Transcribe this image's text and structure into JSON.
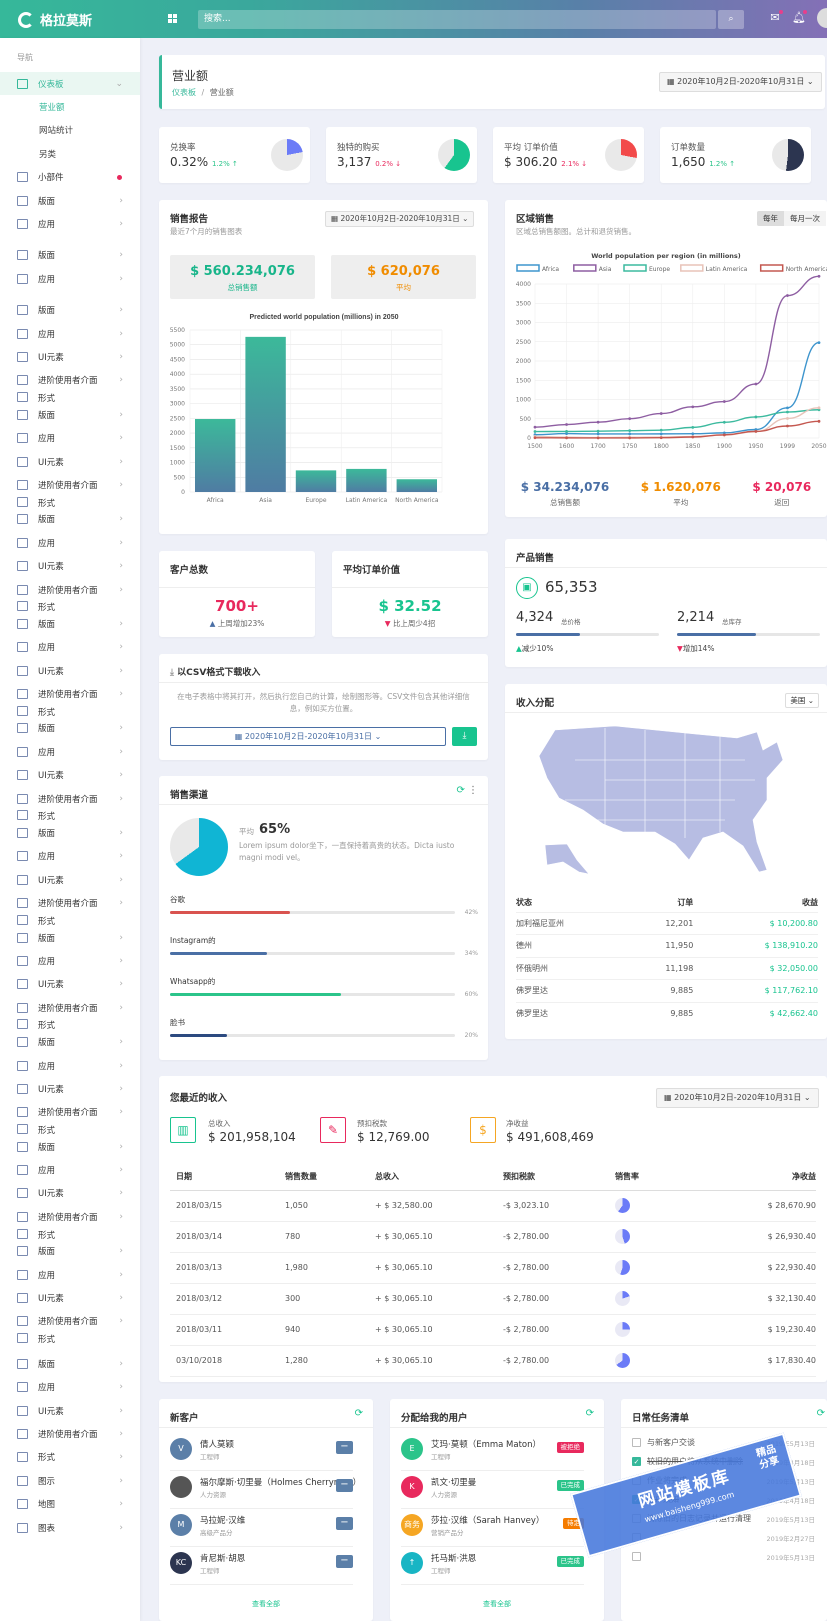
{
  "app": {
    "name": "格拉莫斯",
    "search_placeholder": "搜索..."
  },
  "sidebar": {
    "header": "导航",
    "items": [
      {
        "label": "仪表板",
        "type": "active",
        "icon": "home-icon"
      },
      {
        "label": "营业额",
        "type": "sub-current"
      },
      {
        "label": "网站统计",
        "type": "sub"
      },
      {
        "label": "另类",
        "type": "sub"
      },
      {
        "label": "小部件",
        "type": "dot",
        "icon": "widget-icon"
      },
      {
        "label": "版面",
        "icon": "layout-icon"
      },
      {
        "label": "应用",
        "icon": "app-icon"
      },
      {
        "label": "",
        "icon": "",
        "type": "spacer"
      },
      {
        "label": "版面",
        "icon": "layout-icon"
      },
      {
        "label": "应用",
        "icon": "app-icon"
      },
      {
        "label": "",
        "icon": "",
        "type": "spacer"
      },
      {
        "label": "版面",
        "icon": "layout-icon"
      },
      {
        "label": "应用",
        "icon": "app-icon"
      },
      {
        "label": "UI元素",
        "icon": "ui-icon"
      },
      {
        "label": "进阶使用者介面",
        "icon": "advanced-ui-icon"
      },
      {
        "label": "形式",
        "icon": "form-icon",
        "type": "cut"
      },
      {
        "label": "版面",
        "icon": "layout-icon"
      },
      {
        "label": "应用",
        "icon": "app-icon"
      },
      {
        "label": "UI元素",
        "icon": "ui-icon"
      },
      {
        "label": "进阶使用者介面",
        "icon": "advanced-ui-icon"
      },
      {
        "label": "形式",
        "icon": "form-icon",
        "type": "cut"
      },
      {
        "label": "版面",
        "icon": "layout-icon"
      },
      {
        "label": "应用",
        "icon": "app-icon"
      },
      {
        "label": "UI元素",
        "icon": "ui-icon"
      },
      {
        "label": "进阶使用者介面",
        "icon": "advanced-ui-icon"
      },
      {
        "label": "形式",
        "icon": "form-icon",
        "type": "cut"
      },
      {
        "label": "版面",
        "icon": "layout-icon"
      },
      {
        "label": "应用",
        "icon": "app-icon"
      },
      {
        "label": "UI元素",
        "icon": "ui-icon"
      },
      {
        "label": "进阶使用者介面",
        "icon": "advanced-ui-icon"
      },
      {
        "label": "形式",
        "icon": "form-icon",
        "type": "cut"
      },
      {
        "label": "版面",
        "icon": "layout-icon"
      },
      {
        "label": "应用",
        "icon": "app-icon"
      },
      {
        "label": "UI元素",
        "icon": "ui-icon"
      },
      {
        "label": "进阶使用者介面",
        "icon": "advanced-ui-icon"
      },
      {
        "label": "形式",
        "icon": "form-icon",
        "type": "cut"
      },
      {
        "label": "版面",
        "icon": "layout-icon"
      },
      {
        "label": "应用",
        "icon": "app-icon"
      },
      {
        "label": "UI元素",
        "icon": "ui-icon"
      },
      {
        "label": "进阶使用者介面",
        "icon": "advanced-ui-icon"
      },
      {
        "label": "形式",
        "icon": "form-icon",
        "type": "cut"
      },
      {
        "label": "版面",
        "icon": "layout-icon"
      },
      {
        "label": "应用",
        "icon": "app-icon"
      },
      {
        "label": "UI元素",
        "icon": "ui-icon"
      },
      {
        "label": "进阶使用者介面",
        "icon": "advanced-ui-icon"
      },
      {
        "label": "形式",
        "icon": "form-icon",
        "type": "cut"
      },
      {
        "label": "版面",
        "icon": "layout-icon"
      },
      {
        "label": "应用",
        "icon": "app-icon"
      },
      {
        "label": "UI元素",
        "icon": "ui-icon"
      },
      {
        "label": "进阶使用者介面",
        "icon": "advanced-ui-icon"
      },
      {
        "label": "形式",
        "icon": "form-icon",
        "type": "cut"
      },
      {
        "label": "版面",
        "icon": "layout-icon"
      },
      {
        "label": "应用",
        "icon": "app-icon"
      },
      {
        "label": "UI元素",
        "icon": "ui-icon"
      },
      {
        "label": "进阶使用者介面",
        "icon": "advanced-ui-icon"
      },
      {
        "label": "形式",
        "icon": "form-icon",
        "type": "cut"
      },
      {
        "label": "版面",
        "icon": "layout-icon"
      },
      {
        "label": "应用",
        "icon": "app-icon"
      },
      {
        "label": "UI元素",
        "icon": "ui-icon"
      },
      {
        "label": "进阶使用者介面",
        "icon": "advanced-ui-icon"
      },
      {
        "label": "形式",
        "icon": "form-icon",
        "type": "cut"
      },
      {
        "label": "",
        "icon": "",
        "type": "spacer"
      },
      {
        "label": "版面",
        "icon": "layout-icon"
      },
      {
        "label": "应用",
        "icon": "app-icon"
      },
      {
        "label": "UI元素",
        "icon": "ui-icon"
      },
      {
        "label": "进阶使用者介面",
        "icon": "advanced-ui-icon"
      },
      {
        "label": "形式",
        "icon": "form-icon"
      },
      {
        "label": "图示",
        "icon": "crown-icon"
      },
      {
        "label": "地图",
        "icon": "map-icon"
      },
      {
        "label": "图表",
        "icon": "chart-icon"
      }
    ]
  },
  "page": {
    "title": "营业额",
    "breadcrumb_home": "仪表板",
    "breadcrumb_sep": "/",
    "breadcrumb_current": "营业额",
    "date_range": "2020年10月2日-2020年10月31日"
  },
  "stats": [
    {
      "label": "兑换率",
      "value": "0.32%",
      "change": "1.2% ↑",
      "dir": "up",
      "pie": 0.22,
      "color": "#6b7bf7"
    },
    {
      "label": "独特的购买",
      "value": "3,137",
      "change": "0.2% ↓",
      "dir": "down",
      "pie": 0.6,
      "color": "#18c48f"
    },
    {
      "label": "平均 订单价值",
      "value": "$ 306.20",
      "change": "2.1% ↓",
      "dir": "down",
      "pie": 0.28,
      "color": "#f24a4a"
    },
    {
      "label": "订单数量",
      "value": "1,650",
      "change": "1.2% ↑",
      "dir": "up",
      "pie": 0.52,
      "color": "#2c3550"
    }
  ],
  "sales_report": {
    "title": "销售报告",
    "subtitle": "最近7个月的销售图表",
    "date_range": "2020年10月2日-2020年10月31日",
    "box1_value": "$ 560.234,076",
    "box1_label": "总销售额",
    "box2_value": "$ 620,076",
    "box2_label": "平均"
  },
  "chart_data": [
    {
      "type": "bar",
      "title": "Predicted world population (millions) in 2050",
      "categories": [
        "Africa",
        "Asia",
        "Europe",
        "Latin America",
        "North America"
      ],
      "values": [
        2478,
        5267,
        734,
        784,
        433
      ],
      "ylim": [
        0,
        5500
      ],
      "yticks": [
        0,
        500,
        1000,
        1500,
        2000,
        2500,
        3000,
        3500,
        4000,
        4500,
        5000,
        5500
      ]
    },
    {
      "type": "line",
      "title": "World population per region (in millions)",
      "x": [
        1500,
        1600,
        1700,
        1750,
        1800,
        1850,
        1900,
        1950,
        1999,
        2050
      ],
      "ylim": [
        0,
        4000
      ],
      "yticks": [
        0,
        500,
        1000,
        1500,
        2000,
        2500,
        3000,
        3500,
        4000
      ],
      "series": [
        {
          "name": "Africa",
          "color": "#3e95cd",
          "values": [
            86,
            114,
            106,
            106,
            107,
            111,
            133,
            221,
            783,
            2478
          ]
        },
        {
          "name": "Asia",
          "color": "#8e5ea2",
          "values": [
            282,
            350,
            411,
            502,
            635,
            809,
            947,
            1402,
            3700,
            5267
          ]
        },
        {
          "name": "Europe",
          "color": "#3cba9f",
          "values": [
            168,
            170,
            178,
            190,
            203,
            276,
            408,
            547,
            675,
            734
          ]
        },
        {
          "name": "Latin America",
          "color": "#e8c3b9",
          "values": [
            40,
            20,
            10,
            16,
            24,
            38,
            74,
            167,
            508,
            784
          ]
        },
        {
          "name": "North America",
          "color": "#c45850",
          "values": [
            6,
            3,
            2,
            2,
            7,
            26,
            82,
            172,
            312,
            433
          ]
        }
      ]
    }
  ],
  "regional": {
    "title": "区域销售",
    "subtitle": "区域总销售额图。总计和退货销售。",
    "tab1": "每年",
    "tab2": "每月一次",
    "v1": "$ 34.234,076",
    "l1": "总销售额",
    "v2": "$ 1.620,076",
    "l2": "平均",
    "v3": "$ 20,076",
    "l3": "返回"
  },
  "customers": {
    "title": "客户总数",
    "value": "700+",
    "note": "上周增加23%"
  },
  "avg_order": {
    "title": "平均订单价值",
    "value": "$ 32.52",
    "note": "比上周少4招"
  },
  "product_sales": {
    "title": "产品销售",
    "total": "65,353",
    "a_val": "4,324",
    "a_lbl": "总价格",
    "a_note": "减少10%",
    "b_val": "2,214",
    "b_lbl": "总库存",
    "b_note": "增加14%",
    "a_pct": 0.45,
    "b_pct": 0.55
  },
  "csv": {
    "title": "以CSV格式下载收入",
    "text": "在电子表格中将其打开，然后执行您自己的计算，绘制图形等。CSV文件包含其他详细信息，例如买方位置。",
    "date_range": "2020年10月2日-2020年10月31日"
  },
  "channels": {
    "title": "销售渠道",
    "avg_label": "平均",
    "avg_value": "65%",
    "desc": "Lorem ipsum dolor坐下，一直保持着高贵的状态。Dicta iusto magni modi vel。",
    "pie": 0.65,
    "items": [
      {
        "name": "谷歌",
        "pct": "42%",
        "value": 0.42,
        "color": "#d9534f"
      },
      {
        "name": "Instagram的",
        "pct": "34%",
        "value": 0.34,
        "color": "#4a6fa5"
      },
      {
        "name": "Whatsapp的",
        "pct": "60%",
        "value": 0.6,
        "color": "#2bc48a"
      },
      {
        "name": "脸书",
        "pct": "20%",
        "value": 0.2,
        "color": "#2c4a80"
      }
    ]
  },
  "income": {
    "title": "收入分配",
    "select": "美国",
    "h_state": "状态",
    "h_orders": "订单",
    "h_income": "收益",
    "rows": [
      {
        "state": "加利福尼亚州",
        "orders": "12,201",
        "income": "$ 10,200.80"
      },
      {
        "state": "德州",
        "orders": "11,950",
        "income": "$ 138,910.20"
      },
      {
        "state": "怀俄明州",
        "orders": "11,198",
        "income": "$ 32,050.00"
      },
      {
        "state": "佛罗里达",
        "orders": "9,885",
        "income": "$ 117,762.10"
      },
      {
        "state": "佛罗里达",
        "orders": "9,885",
        "income": "$ 42,662.40"
      }
    ]
  },
  "recent": {
    "title": "您最近的收入",
    "date_range": "2020年10月2日-2020年10月31日",
    "s1_lbl": "总收入",
    "s1_val": "$ 201,958,104",
    "s2_lbl": "预扣税款",
    "s2_val": "$ 12,769.00",
    "s3_lbl": "净收益",
    "s3_val": "$ 491,608,469",
    "headers": [
      "日期",
      "销售数量",
      "总收入",
      "预扣税款",
      "销售率",
      "净收益"
    ],
    "rows": [
      {
        "date": "2018/03/15",
        "qty": "1,050",
        "gross": "+ $ 32,580.00",
        "tax": "-$ 3,023.10",
        "rate": 0.6,
        "net": "$ 28,670.90"
      },
      {
        "date": "2018/03/14",
        "qty": "780",
        "gross": "+ $ 30,065.10",
        "tax": "-$ 2,780.00",
        "rate": 0.45,
        "net": "$ 26,930.40"
      },
      {
        "date": "2018/03/13",
        "qty": "1,980",
        "gross": "+ $ 30,065.10",
        "tax": "-$ 2,780.00",
        "rate": 0.55,
        "net": "$ 22,930.40"
      },
      {
        "date": "2018/03/12",
        "qty": "300",
        "gross": "+ $ 30,065.10",
        "tax": "-$ 2,780.00",
        "rate": 0.2,
        "net": "$ 32,130.40"
      },
      {
        "date": "2018/03/11",
        "qty": "940",
        "gross": "+ $ 30,065.10",
        "tax": "-$ 2,780.00",
        "rate": 0.25,
        "net": "$ 19,230.40"
      },
      {
        "date": "03/10/2018",
        "qty": "1,280",
        "gross": "+ $ 30,065.10",
        "tax": "-$ 2,780.00",
        "rate": 0.65,
        "net": "$ 17,830.40"
      }
    ]
  },
  "new_customers": {
    "title": "新客户",
    "more": "查看全部",
    "items": [
      {
        "name": "倩人莫颖",
        "role": "工程师",
        "initial": "V",
        "color": "#5b7fa8"
      },
      {
        "name": "福尔摩斯·切里曼（Holmes Cherryman）",
        "role": "人力资源",
        "initial": "",
        "color": "#555"
      },
      {
        "name": "马拉妮·汉维",
        "role": "高级产品分",
        "initial": "M",
        "color": "#5b7fa8"
      },
      {
        "name": "肯尼斯·胡恩",
        "role": "工程师",
        "initial": "KC",
        "color": "#2c3550"
      }
    ]
  },
  "assigned": {
    "title": "分配给我的用户",
    "more": "查看全部",
    "items": [
      {
        "name": "艾玛·莫顿（Emma Maton）",
        "role": "工程师",
        "initial": "E",
        "color": "#2bc48a",
        "tag": "被拒绝",
        "tagc": "#e8295d"
      },
      {
        "name": "凯文·切里曼",
        "role": "人力资源",
        "initial": "K",
        "color": "#e8295d",
        "tag": "已完成",
        "tagc": "#2bc48a"
      },
      {
        "name": "莎拉·汉维（Sarah Hanvey）",
        "role": "营销产品分",
        "initial": "商务",
        "color": "#f5a623",
        "tag": "待定",
        "tagc": "#f57c00"
      },
      {
        "name": "托马斯·洪恩",
        "role": "工程师",
        "initial": "↑",
        "color": "#18b5c4",
        "tag": "已完成",
        "tagc": "#2bc48a"
      }
    ]
  },
  "tasks": {
    "title": "日常任务清单",
    "items": [
      {
        "text": "与新客户交谈",
        "done": false,
        "date": "2019年5月13日"
      },
      {
        "text": "较旧的用户将从系统中删除",
        "done": true,
        "date": "2019年4月18日"
      },
      {
        "text": "作业将完成",
        "done": false,
        "date": "2019年5月13日"
      },
      {
        "text": "客户须知",
        "done": true,
        "date": "2019年4月18日"
      },
      {
        "text": "清除旧的日志记录并运行清理",
        "done": false,
        "date": "2019年5月13日"
      },
      {
        "text": "",
        "done": false,
        "date": "2019年2月27日"
      },
      {
        "text": "",
        "done": false,
        "date": "2019年5月13日"
      }
    ]
  },
  "watermark": {
    "line1": "网站模板库",
    "line2": "www.baisheng999.com",
    "badge1": "精品",
    "badge2": "分享"
  }
}
